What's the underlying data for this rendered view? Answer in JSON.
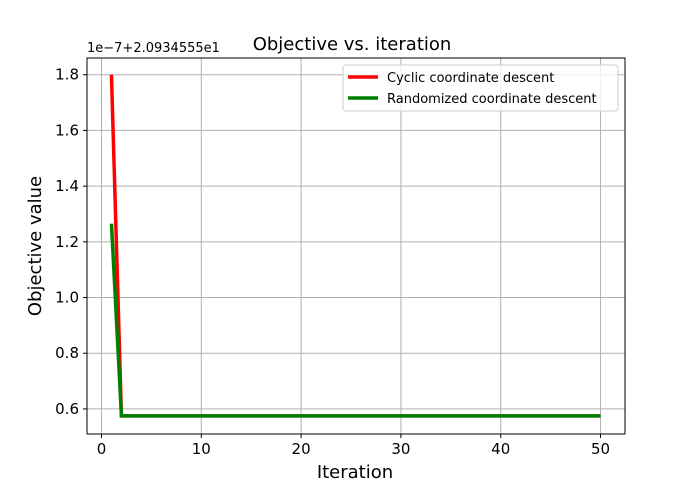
{
  "chart_data": {
    "type": "line",
    "title": "Objective vs. iteration",
    "xlabel": "Iteration",
    "ylabel": "Objective value",
    "y_offset_label": "1e−7+2.0934555e1",
    "xlim": [
      -1.45,
      52.45
    ],
    "ylim": [
      0.51,
      1.86
    ],
    "x_ticks": [
      0,
      10,
      20,
      30,
      40,
      50
    ],
    "x_tick_labels": [
      "0",
      "10",
      "20",
      "30",
      "40",
      "50"
    ],
    "y_ticks": [
      0.6,
      0.8,
      1.0,
      1.2,
      1.4,
      1.6,
      1.8
    ],
    "y_tick_labels": [
      "0.6",
      "0.8",
      "1.0",
      "1.2",
      "1.4",
      "1.6",
      "1.8"
    ],
    "grid": true,
    "legend_position": "top-right",
    "series": [
      {
        "name": "Cyclic coordinate descent",
        "color": "#ff0000",
        "x": [
          1,
          2,
          3,
          50
        ],
        "y": [
          1.8,
          0.575,
          0.575,
          0.575
        ]
      },
      {
        "name": "Randomized coordinate descent",
        "color": "#008000",
        "x": [
          1,
          2,
          3,
          50
        ],
        "y": [
          1.265,
          0.575,
          0.575,
          0.575
        ]
      }
    ]
  }
}
